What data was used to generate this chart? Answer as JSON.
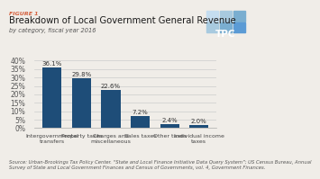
{
  "title_figure": "FIGURE 1",
  "title_main": "Breakdown of Local Government General Revenue",
  "title_sub": "by category, fiscal year 2016",
  "categories": [
    "Intergovernmental\ntransfers",
    "Property taxes",
    "Charges and\nmiscellaneous",
    "Sales taxes",
    "Other taxes",
    "Individual income\ntaxes"
  ],
  "values": [
    36.1,
    29.8,
    22.6,
    7.2,
    2.4,
    2.0
  ],
  "bar_color": "#1e4d78",
  "ylim": [
    0,
    42
  ],
  "yticks": [
    0,
    5,
    10,
    15,
    20,
    25,
    30,
    35,
    40
  ],
  "source_text": "Source: Urban-Brookings Tax Policy Center. “State and Local Finance Initiative Data Query System”; US Census Bureau, Annual\nSurvey of State and Local Government Finances and Census of Governments, vol. 4, Government Finances.",
  "background_color": "#f0ede8",
  "title_color": "#d45f3c",
  "main_title_color": "#1a1a1a",
  "bar_label_fontsize": 5.0,
  "xlabel_fontsize": 4.5,
  "ylabel_fontsize": 5.5,
  "source_fontsize": 3.8,
  "logo_bg_color": "#2e6da4",
  "logo_colors": [
    "#b8d4ea",
    "#7aaed0",
    "#5b9bd5",
    "#7aaed0",
    "#5b9bd5",
    "#2e6da4",
    "#5b9bd5",
    "#2e6da4",
    "#1a4f7a"
  ]
}
